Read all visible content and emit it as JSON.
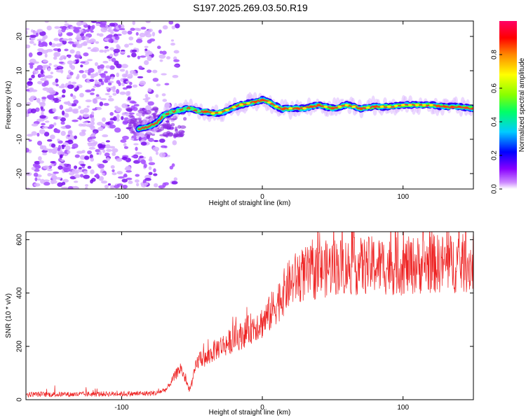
{
  "title": "S197.2025.269.03.50.R19",
  "chart_data": [
    {
      "type": "heatmap",
      "xlabel": "Height of straight line (km)",
      "ylabel": "Frequency (Hz)",
      "xlim": [
        -168,
        150
      ],
      "ylim": [
        -24.5,
        24.5
      ],
      "xticks": [
        -100,
        0,
        100
      ],
      "xtick_labels": [
        "-100",
        "0",
        "100"
      ],
      "yticks": [
        -20,
        -10,
        0,
        10,
        20
      ],
      "ytick_labels": [
        "-20",
        "-10",
        "0",
        "10",
        "20"
      ],
      "colorbar": {
        "label": "Normalized spectral amplitude",
        "range": [
          0,
          1
        ],
        "ticks": [
          0.0,
          0.2,
          0.4,
          0.6,
          0.8
        ],
        "tick_labels": [
          "0.0",
          "0.2",
          "0.4",
          "0.6",
          "0.8"
        ],
        "colors": [
          "#ffffff",
          "#cc88ff",
          "#8800ff",
          "#0000ff",
          "#00ccff",
          "#00ff66",
          "#88ff00",
          "#ffff00",
          "#ff8800",
          "#ff0000",
          "#ff0066"
        ]
      },
      "ridge": {
        "x": [
          -88,
          -82,
          -76,
          -70,
          -64,
          -58,
          -52,
          -46,
          -40,
          -34,
          -28,
          -22,
          -16,
          -10,
          -4,
          0,
          4,
          8,
          14,
          20,
          30,
          40,
          50,
          60,
          70,
          80,
          90,
          100,
          110,
          120,
          130,
          140,
          150
        ],
        "freq": [
          -7,
          -6.5,
          -5.5,
          -3,
          -2,
          -1.5,
          -1,
          -1.8,
          -2,
          -2.5,
          -2,
          -1,
          0,
          0.5,
          1,
          1.5,
          1,
          0,
          -1.2,
          -1,
          -1,
          0,
          -1,
          0,
          -1,
          -0.5,
          -0.5,
          0,
          0,
          0,
          -0.5,
          -0.5,
          -1
        ]
      },
      "noise_region_x": [
        -168,
        -60
      ]
    },
    {
      "type": "line",
      "xlabel": "Height of straight line (km)",
      "ylabel": "SNR (10 * v/v)",
      "xlim": [
        -168,
        150
      ],
      "ylim": [
        0,
        630
      ],
      "xticks": [
        -100,
        0,
        100
      ],
      "xtick_labels": [
        "-100",
        "0",
        "100"
      ],
      "yticks": [
        0,
        200,
        400,
        600
      ],
      "ytick_labels": [
        "0",
        "200",
        "400",
        "600"
      ],
      "color": "#ee2222",
      "series": [
        {
          "name": "SNR",
          "x": [
            -168,
            -150,
            -130,
            -110,
            -90,
            -75,
            -68,
            -62,
            -58,
            -55,
            -52,
            -50,
            -47,
            -44,
            -40,
            -35,
            -30,
            -25,
            -20,
            -15,
            -10,
            -5,
            0,
            5,
            10,
            15,
            20,
            25,
            30,
            40,
            50,
            60,
            70,
            80,
            90,
            100,
            110,
            120,
            130,
            150
          ],
          "values": [
            20,
            20,
            20,
            22,
            22,
            25,
            40,
            90,
            120,
            80,
            40,
            60,
            130,
            160,
            150,
            180,
            200,
            210,
            230,
            240,
            260,
            280,
            290,
            320,
            360,
            400,
            440,
            460,
            470,
            480,
            500,
            500,
            500,
            505,
            500,
            500,
            505,
            510,
            510,
            510
          ]
        }
      ]
    }
  ]
}
